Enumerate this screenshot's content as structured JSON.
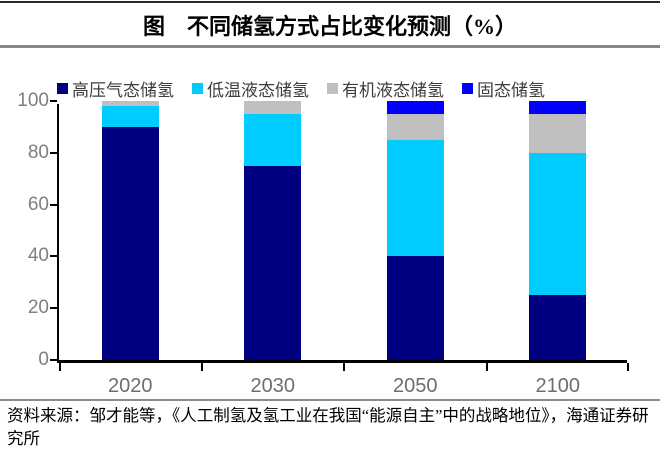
{
  "header": {
    "title": "图　不同储氢方式占比变化预测（%）"
  },
  "chart_data": {
    "type": "bar",
    "stacked": true,
    "title": "图　不同储氢方式占比变化预测（%）",
    "categories": [
      "2020",
      "2030",
      "2050",
      "2100"
    ],
    "series": [
      {
        "name": "高压气态储氢",
        "color": "#000080",
        "values": [
          90,
          75,
          40,
          25
        ]
      },
      {
        "name": "低温液态储氢",
        "color": "#00CCFF",
        "values": [
          8,
          20,
          45,
          55
        ]
      },
      {
        "name": "有机液态储氢",
        "color": "#BFBFBF",
        "values": [
          2,
          5,
          10,
          15
        ]
      },
      {
        "name": "固态储氢",
        "color": "#0000FB",
        "values": [
          0,
          0,
          5,
          5
        ]
      }
    ],
    "xlabel": "",
    "ylabel": "",
    "ylim": [
      0,
      100
    ],
    "yticks": [
      0,
      20,
      40,
      60,
      80,
      100
    ],
    "legend_position": "top",
    "grid": false,
    "colors": {
      "axis": "#000000",
      "tick_label": "#7f7f7f"
    }
  },
  "footer": {
    "source": "资料来源：邹才能等，《人工制氢及氢工业在我国“能源自主”中的战略地位》，海通证券研究所"
  }
}
